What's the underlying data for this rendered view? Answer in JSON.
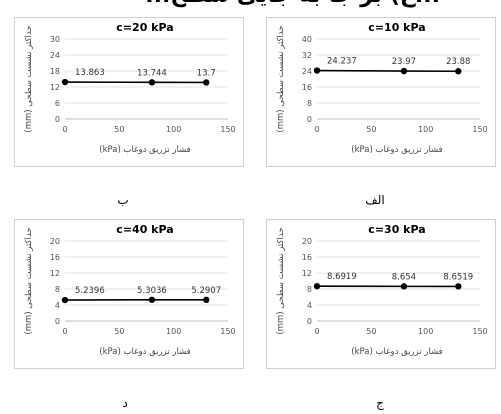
{
  "cut_title": "...ع) بر جا به جایی سطح...",
  "chart_data": [
    {
      "id": "alef",
      "type": "line",
      "title": "c=10 kPa",
      "x": [
        0,
        80,
        130
      ],
      "y": [
        24.237,
        23.97,
        23.88
      ],
      "labels": [
        "24.237",
        "23.97",
        "23.88"
      ],
      "xlabel": "فشار تزریق دوغاب (kPa)",
      "ylabel": "حداکثر نشست سطحی (mm)",
      "xlim": [
        0,
        150
      ],
      "xticks": [
        0,
        50,
        100,
        150
      ],
      "ylim": [
        0,
        40
      ],
      "yticks": [
        0,
        8,
        16,
        24,
        32,
        40
      ],
      "grid": true,
      "caption": "الف"
    },
    {
      "id": "be",
      "type": "line",
      "title": "c=20 kPa",
      "x": [
        0,
        80,
        130
      ],
      "y": [
        13.863,
        13.744,
        13.7
      ],
      "labels": [
        "13.863",
        "13.744",
        "13.7"
      ],
      "xlabel": "فشار تزریق دوغاب (kPa)",
      "ylabel": "حداکثر نشست سطحی (mm)",
      "xlim": [
        0,
        150
      ],
      "xticks": [
        0,
        50,
        100,
        150
      ],
      "ylim": [
        0,
        30
      ],
      "yticks": [
        0,
        6,
        12,
        18,
        24,
        30
      ],
      "grid": true,
      "caption": "ب"
    },
    {
      "id": "jim",
      "type": "line",
      "title": "c=30 kPa",
      "x": [
        0,
        80,
        130
      ],
      "y": [
        8.6919,
        8.654,
        8.6519
      ],
      "labels": [
        "8.6919",
        "8.654",
        "8.6519"
      ],
      "xlabel": "فشار تزریق دوغاب (kPa)",
      "ylabel": "حداکثر نشست سطحی (mm)",
      "xlim": [
        0,
        150
      ],
      "xticks": [
        0,
        50,
        100,
        150
      ],
      "ylim": [
        0,
        20
      ],
      "yticks": [
        0,
        4,
        8,
        12,
        16,
        20
      ],
      "grid": true,
      "caption": "ج"
    },
    {
      "id": "dal",
      "type": "line",
      "title": "c=40 kPa",
      "x": [
        0,
        80,
        130
      ],
      "y": [
        5.2396,
        5.3036,
        5.2907
      ],
      "labels": [
        "5.2396",
        "5.3036",
        "5.2907"
      ],
      "xlabel": "فشار تزریق دوغاب (kPa)",
      "ylabel": "حداکثر نشست سطحی (mm)",
      "xlim": [
        0,
        150
      ],
      "xticks": [
        0,
        50,
        100,
        150
      ],
      "ylim": [
        0,
        20
      ],
      "yticks": [
        0,
        4,
        8,
        12,
        16,
        20
      ],
      "grid": true,
      "caption": "د"
    }
  ]
}
